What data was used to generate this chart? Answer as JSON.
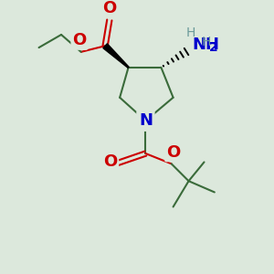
{
  "bg_color": "#dce8dc",
  "fig_size": [
    3.0,
    3.0
  ],
  "dpi": 100,
  "colors": {
    "C": "#3a6b3a",
    "N": "#0000cc",
    "O": "#cc0000",
    "H": "#6b9a9a",
    "bond": "#3a6b3a"
  }
}
